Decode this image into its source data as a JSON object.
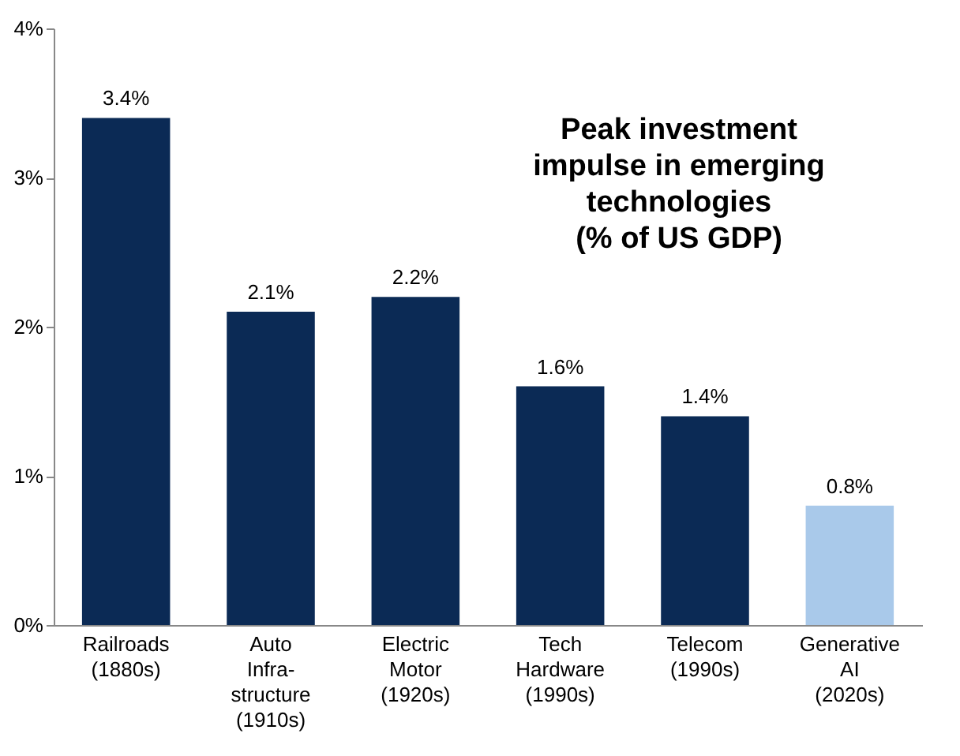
{
  "chart_data": {
    "type": "bar",
    "title": "Peak investment\nimpulse in emerging\ntechnologies\n(% of US GDP)",
    "categories": [
      "Railroads\n(1880s)",
      "Auto\nInfra-\nstructure\n(1910s)",
      "Electric\nMotor\n(1920s)",
      "Tech\nHardware\n(1990s)",
      "Telecom\n(1990s)",
      "Generative\nAI\n(2020s)"
    ],
    "values": [
      3.4,
      2.1,
      2.2,
      1.6,
      1.4,
      0.8
    ],
    "colors": [
      "#0b2a55",
      "#0b2a55",
      "#0b2a55",
      "#0b2a55",
      "#0b2a55",
      "#a9c9ea"
    ],
    "value_labels": [
      "3.4%",
      "2.1%",
      "2.2%",
      "1.6%",
      "1.4%",
      "0.8%"
    ],
    "ylim": [
      0,
      4
    ],
    "yticks": [
      {
        "value": 0,
        "label": "0%"
      },
      {
        "value": 1,
        "label": "1%"
      },
      {
        "value": 2,
        "label": "2%"
      },
      {
        "value": 3,
        "label": "3%"
      },
      {
        "value": 4,
        "label": "4%"
      }
    ],
    "grid": false,
    "legend": false
  }
}
